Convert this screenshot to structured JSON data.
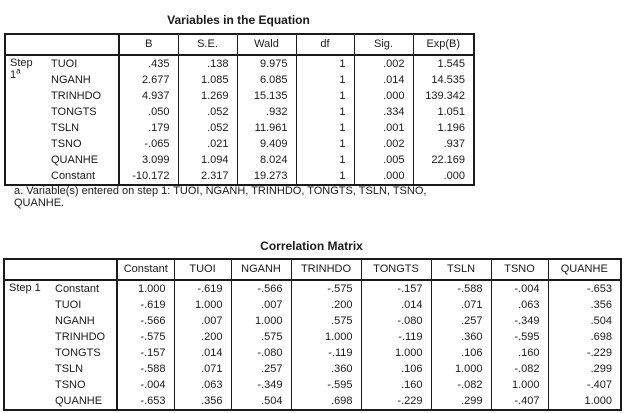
{
  "colors": {
    "background": "#ffffff",
    "text": "#1a1a1a",
    "border": "#1a1a1a"
  },
  "variables_in_equation": {
    "title": "Variables in the Equation",
    "step": {
      "line1": "Step",
      "line2": "1",
      "sup": "a"
    },
    "columns": [
      "B",
      "S.E.",
      "Wald",
      "df",
      "Sig.",
      "Exp(B)"
    ],
    "rows": [
      {
        "label": "TUOI",
        "values": [
          ".435",
          ".138",
          "9.975",
          "1",
          ".002",
          "1.545"
        ]
      },
      {
        "label": "NGANH",
        "values": [
          "2.677",
          "1.085",
          "6.085",
          "1",
          ".014",
          "14.535"
        ]
      },
      {
        "label": "TRINHDO",
        "values": [
          "4.937",
          "1.269",
          "15.135",
          "1",
          ".000",
          "139.342"
        ]
      },
      {
        "label": "TONGTS",
        "values": [
          ".050",
          ".052",
          ".932",
          "1",
          ".334",
          "1.051"
        ]
      },
      {
        "label": "TSLN",
        "values": [
          ".179",
          ".052",
          "11.961",
          "1",
          ".001",
          "1.196"
        ]
      },
      {
        "label": "TSNO",
        "values": [
          "-.065",
          ".021",
          "9.409",
          "1",
          ".002",
          ".937"
        ]
      },
      {
        "label": "QUANHE",
        "values": [
          "3.099",
          "1.094",
          "8.024",
          "1",
          ".005",
          "22.169"
        ]
      },
      {
        "label": "Constant",
        "values": [
          "-10.172",
          "2.317",
          "19.273",
          "1",
          ".000",
          ".000"
        ]
      }
    ],
    "footnote": "a. Variable(s) entered on step 1: TUOI, NGANH, TRINHDO, TONGTS, TSLN, TSNO, QUANHE."
  },
  "correlation_matrix": {
    "title": "Correlation Matrix",
    "step": {
      "line1": "Step 1"
    },
    "columns": [
      "Constant",
      "TUOI",
      "NGANH",
      "TRINHDO",
      "TONGTS",
      "TSLN",
      "TSNO",
      "QUANHE"
    ],
    "rows": [
      {
        "label": "Constant",
        "values": [
          "1.000",
          "-.619",
          "-.566",
          "-.575",
          "-.157",
          "-.588",
          "-.004",
          "-.653"
        ]
      },
      {
        "label": "TUOI",
        "values": [
          "-.619",
          "1.000",
          ".007",
          ".200",
          ".014",
          ".071",
          ".063",
          ".356"
        ]
      },
      {
        "label": "NGANH",
        "values": [
          "-.566",
          ".007",
          "1.000",
          ".575",
          "-.080",
          ".257",
          "-.349",
          ".504"
        ]
      },
      {
        "label": "TRINHDO",
        "values": [
          "-.575",
          ".200",
          ".575",
          "1.000",
          "-.119",
          ".360",
          "-.595",
          ".698"
        ]
      },
      {
        "label": "TONGTS",
        "values": [
          "-.157",
          ".014",
          "-.080",
          "-.119",
          "1.000",
          ".106",
          ".160",
          "-.229"
        ]
      },
      {
        "label": "TSLN",
        "values": [
          "-.588",
          ".071",
          ".257",
          ".360",
          ".106",
          "1.000",
          "-.082",
          ".299"
        ]
      },
      {
        "label": "TSNO",
        "values": [
          "-.004",
          ".063",
          "-.349",
          "-.595",
          ".160",
          "-.082",
          "1.000",
          "-.407"
        ]
      },
      {
        "label": "QUANHE",
        "values": [
          "-.653",
          ".356",
          ".504",
          ".698",
          "-.229",
          ".299",
          "-.407",
          "1.000"
        ]
      }
    ]
  }
}
